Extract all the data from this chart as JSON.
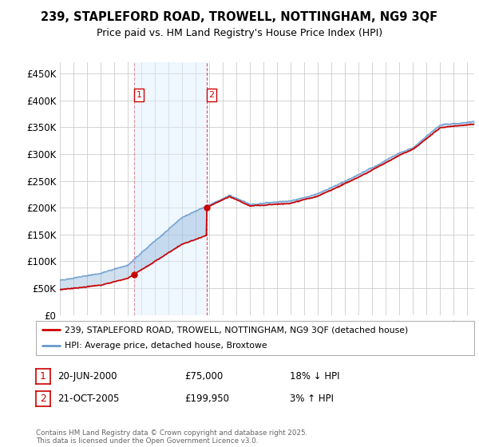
{
  "title_line1": "239, STAPLEFORD ROAD, TROWELL, NOTTINGHAM, NG9 3QF",
  "title_line2": "Price paid vs. HM Land Registry's House Price Index (HPI)",
  "ylim": [
    0,
    470000
  ],
  "yticks": [
    0,
    50000,
    100000,
    150000,
    200000,
    250000,
    300000,
    350000,
    400000,
    450000
  ],
  "ytick_labels": [
    "£0",
    "£50K",
    "£100K",
    "£150K",
    "£200K",
    "£250K",
    "£300K",
    "£350K",
    "£400K",
    "£450K"
  ],
  "legend_entry1": "239, STAPLEFORD ROAD, TROWELL, NOTTINGHAM, NG9 3QF (detached house)",
  "legend_entry2": "HPI: Average price, detached house, Broxtowe",
  "sale1_label": "1",
  "sale1_date": "20-JUN-2000",
  "sale1_price": "£75,000",
  "sale1_hpi": "18% ↓ HPI",
  "sale1_year": 2000.47,
  "sale1_value": 75000,
  "sale2_label": "2",
  "sale2_date": "21-OCT-2005",
  "sale2_price": "£199,950",
  "sale2_hpi": "3% ↑ HPI",
  "sale2_year": 2005.8,
  "sale2_value": 199950,
  "red_line_color": "#cc0000",
  "blue_line_color": "#6699cc",
  "fill_color": "#d0e4f7",
  "vline_color": "#cc0000",
  "grid_color": "#cccccc",
  "background_color": "#ffffff",
  "footnote": "Contains HM Land Registry data © Crown copyright and database right 2025.\nThis data is licensed under the Open Government Licence v3.0.",
  "xmin": 1995,
  "xmax": 2025.5
}
